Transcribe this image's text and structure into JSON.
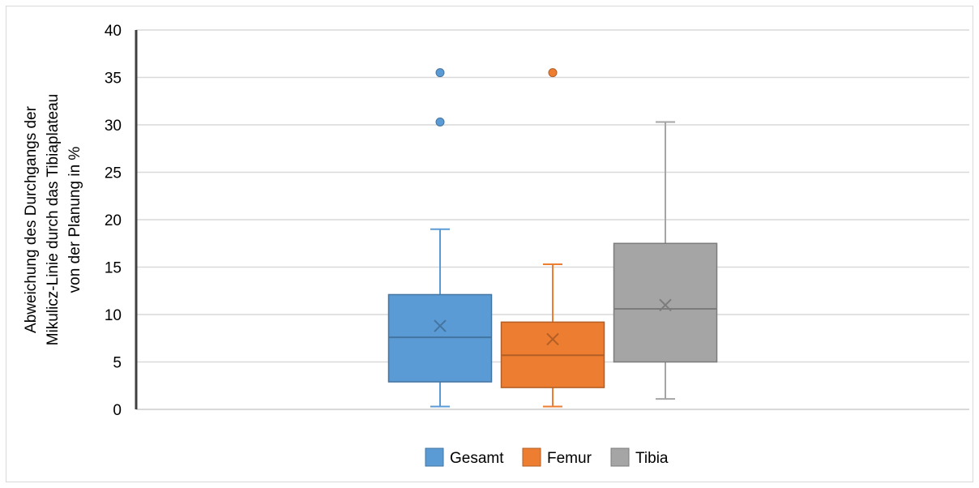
{
  "chart_data": {
    "type": "box",
    "ylabel_lines": [
      "Abweichung des Durchgangs der",
      "Mikulicz-Linie durch das Tibiaplateau",
      "von der Planung in %"
    ],
    "xlabel": "",
    "ylim": [
      0,
      40
    ],
    "yticks": [
      0,
      5,
      10,
      15,
      20,
      25,
      30,
      35,
      40
    ],
    "grid": true,
    "legend_position": "bottom",
    "series": [
      {
        "name": "Gesamt",
        "color": "#5b9bd5",
        "min": 0.3,
        "q1": 2.9,
        "median": 7.6,
        "mean": 8.8,
        "q3": 12.1,
        "max": 19.0,
        "outliers": [
          30.3,
          35.5
        ]
      },
      {
        "name": "Femur",
        "color": "#ed7d31",
        "min": 0.3,
        "q1": 2.3,
        "median": 5.7,
        "mean": 7.4,
        "q3": 9.2,
        "max": 15.3,
        "outliers": [
          35.5
        ]
      },
      {
        "name": "Tibia",
        "color": "#a5a5a5",
        "min": 1.1,
        "q1": 5.0,
        "median": 10.6,
        "mean": 11.0,
        "q3": 17.5,
        "max": 30.3,
        "outliers": []
      }
    ]
  }
}
